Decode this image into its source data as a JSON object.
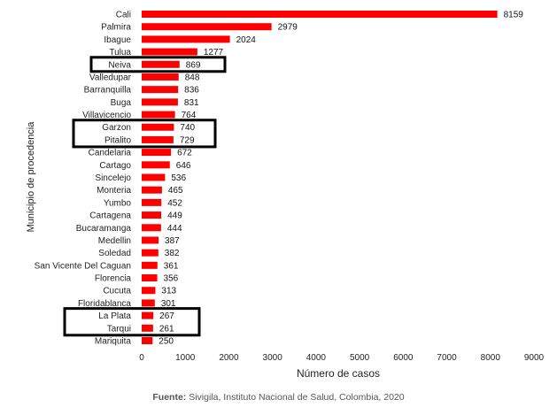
{
  "chart_data": {
    "type": "bar",
    "orientation": "horizontal",
    "categories": [
      "Cali",
      "Palmira",
      "Ibague",
      "Tulua",
      "Neiva",
      "Valledupar",
      "Barranquilla",
      "Buga",
      "Villavicencio",
      "Garzon",
      "Pitalito",
      "Candelaria",
      "Cartago",
      "Sincelejo",
      "Monteria",
      "Yumbo",
      "Cartagena",
      "Bucaramanga",
      "Medellin",
      "Soledad",
      "San Vicente Del Caguan",
      "Florencia",
      "Cucuta",
      "Floridablanca",
      "La Plata",
      "Tarqui",
      "Mariquita"
    ],
    "values": [
      8159,
      2979,
      2024,
      1277,
      869,
      848,
      836,
      831,
      764,
      740,
      729,
      672,
      646,
      536,
      465,
      452,
      449,
      444,
      387,
      382,
      361,
      356,
      313,
      301,
      267,
      261,
      250
    ],
    "value_labels": [
      "8159",
      "2979",
      "2024",
      "1277",
      "869",
      "848",
      "836",
      "831",
      "764",
      "740",
      "729",
      "672",
      "646",
      "536",
      "465",
      "452",
      "449",
      "444",
      "387",
      "382",
      "361",
      "356",
      "313",
      "301",
      "267",
      "261",
      "250"
    ],
    "xlabel": "Número de casos",
    "ylabel": "Municipio de procedencia",
    "xlim": [
      0,
      9000
    ],
    "x_ticks": [
      "0",
      "1000",
      "2000",
      "3000",
      "4000",
      "5000",
      "6000",
      "7000",
      "8000",
      "9000"
    ],
    "bar_color": "#ff0000",
    "grid": false,
    "highlighted_groups": [
      [
        "Neiva"
      ],
      [
        "Garzon",
        "Pitalito"
      ],
      [
        "La Plata",
        "Tarqui"
      ]
    ]
  },
  "source": {
    "prefix": "Fuente:",
    "text": " Sivigila, Instituto Nacional de Salud, Colombia, 2020"
  }
}
